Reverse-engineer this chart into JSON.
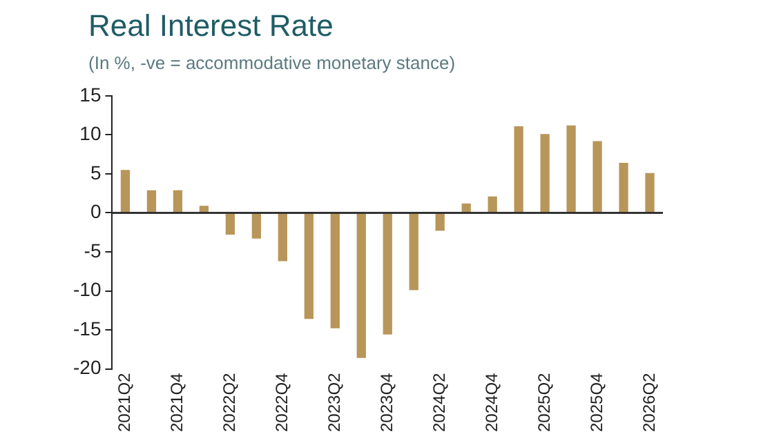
{
  "chart_data": {
    "type": "bar",
    "title": "Real Interest Rate",
    "subtitle": "(In %, -ve = accommodative monetary stance)",
    "categories": [
      "2021Q2",
      null,
      "2021Q4",
      null,
      "2022Q2",
      null,
      "2022Q4",
      null,
      "2023Q2",
      null,
      "2023Q4",
      null,
      "2024Q2",
      null,
      "2024Q4",
      null,
      "2025Q2",
      null,
      "2025Q4",
      null,
      "2026Q2"
    ],
    "values": [
      5.5,
      2.9,
      2.9,
      0.9,
      -2.8,
      -3.3,
      -6.2,
      -13.6,
      -14.8,
      -18.6,
      -15.6,
      -9.9,
      -2.3,
      1.2,
      2.1,
      11.1,
      10.1,
      11.2,
      9.2,
      6.4,
      5.1
    ],
    "color": "#b8965a",
    "ylim": [
      -20,
      15
    ],
    "yticks": [
      -20,
      -15,
      -10,
      -5,
      0,
      5,
      10,
      15
    ],
    "legend": false
  }
}
